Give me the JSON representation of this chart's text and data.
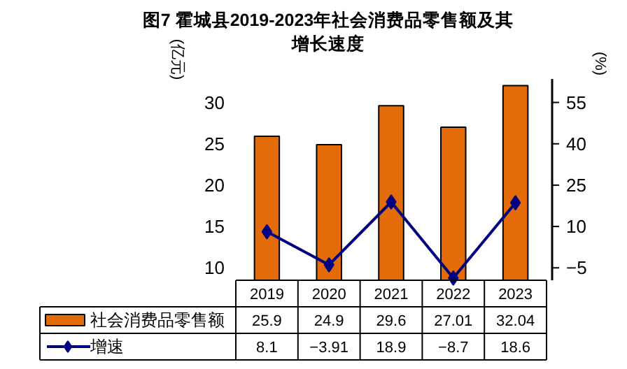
{
  "chart_data": {
    "type": "bar",
    "title": "图7 霍城县2019-2023年社会消费品零售额及其增长速度",
    "ylabel": "(亿元)",
    "y2label": "(%)",
    "categories": [
      "2019",
      "2020",
      "2021",
      "2022",
      "2023"
    ],
    "series": [
      {
        "name": "社会消费品零售额",
        "color": "#e36c09",
        "values": [
          25.9,
          24.9,
          29.6,
          27.01,
          32.04
        ]
      },
      {
        "name": "增速",
        "type": "line",
        "axis": "y2",
        "color": "#000080",
        "marker": "diamond",
        "values": [
          8.1,
          -3.91,
          18.9,
          -8.7,
          18.6
        ]
      }
    ],
    "ylim": [
      8.5,
      32.5
    ],
    "yticks": [
      10,
      15,
      20,
      25,
      30
    ],
    "y2lim": [
      -9.5,
      62.5
    ],
    "y2ticks": [
      -5,
      10,
      25,
      40,
      55
    ],
    "data_labels": true,
    "legend": "bottom",
    "grid": false
  }
}
